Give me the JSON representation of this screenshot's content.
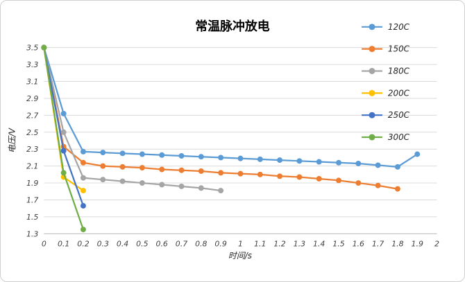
{
  "chart_data": {
    "type": "line",
    "title": "常温脉冲放电",
    "xlabel": "时间/s",
    "ylabel": "电压/V",
    "xlim": [
      0,
      2
    ],
    "ylim": [
      1.3,
      3.5
    ],
    "grid": true,
    "legend_position": "top-right",
    "grid_color": "#d9d9d9",
    "axis_line_color": "#bfbfbf",
    "x_ticks": [
      "0",
      "0.1",
      "0.2",
      "0.3",
      "0.4",
      "0.5",
      "0.6",
      "0.7",
      "0.8",
      "0.9",
      "1",
      "1.1",
      "1.2",
      "1.3",
      "1.4",
      "1.5",
      "1.6",
      "1.7",
      "1.8",
      "1.9",
      "2"
    ],
    "y_ticks": [
      "3.5",
      "3.3",
      "3.1",
      "2.9",
      "2.7",
      "2.5",
      "2.3",
      "2.1",
      "1.9",
      "1.7",
      "1.5",
      "1.3"
    ],
    "series": [
      {
        "name": "120C",
        "color": "#5B9BD5",
        "x": [
          0,
          0.1,
          0.2,
          0.3,
          0.4,
          0.5,
          0.6,
          0.7,
          0.8,
          0.9,
          1.0,
          1.1,
          1.2,
          1.3,
          1.4,
          1.5,
          1.6,
          1.7,
          1.8,
          1.9
        ],
        "y": [
          3.5,
          2.72,
          2.27,
          2.26,
          2.25,
          2.24,
          2.23,
          2.22,
          2.21,
          2.2,
          2.19,
          2.18,
          2.17,
          2.16,
          2.15,
          2.14,
          2.13,
          2.11,
          2.09,
          2.24
        ]
      },
      {
        "name": "150C",
        "color": "#ED7D31",
        "x": [
          0,
          0.1,
          0.2,
          0.3,
          0.4,
          0.5,
          0.6,
          0.7,
          0.8,
          0.9,
          1.0,
          1.1,
          1.2,
          1.3,
          1.4,
          1.5,
          1.6,
          1.7,
          1.8
        ],
        "y": [
          3.5,
          2.33,
          2.14,
          2.1,
          2.09,
          2.08,
          2.06,
          2.05,
          2.04,
          2.02,
          2.01,
          2.0,
          1.98,
          1.97,
          1.95,
          1.93,
          1.9,
          1.87,
          1.83
        ]
      },
      {
        "name": "180C",
        "color": "#A5A5A5",
        "x": [
          0,
          0.1,
          0.2,
          0.3,
          0.4,
          0.5,
          0.6,
          0.7,
          0.8,
          0.9
        ],
        "y": [
          3.5,
          2.5,
          1.96,
          1.94,
          1.92,
          1.9,
          1.88,
          1.86,
          1.84,
          1.81
        ]
      },
      {
        "name": "200C",
        "color": "#FFC000",
        "x": [
          0,
          0.1,
          0.2
        ],
        "y": [
          3.5,
          1.97,
          1.81
        ]
      },
      {
        "name": "250C",
        "color": "#4472C4",
        "x": [
          0,
          0.1,
          0.2
        ],
        "y": [
          3.5,
          2.28,
          1.63
        ]
      },
      {
        "name": "300C",
        "color": "#70AD47",
        "x": [
          0,
          0.1,
          0.2
        ],
        "y": [
          3.5,
          2.02,
          1.35
        ]
      }
    ]
  }
}
